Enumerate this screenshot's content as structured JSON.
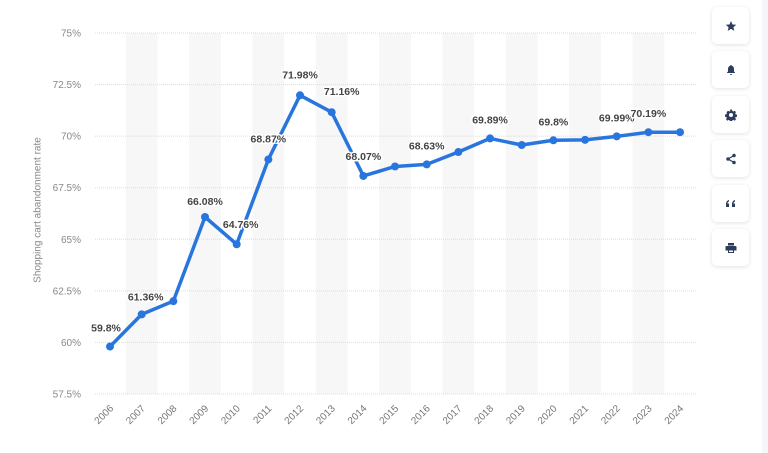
{
  "chart_data": {
    "type": "line",
    "title": "",
    "xlabel": "",
    "ylabel": "Shopping cart abandonment rate",
    "ylim": [
      57.5,
      75
    ],
    "yticks": [
      "57.5%",
      "60%",
      "62.5%",
      "65%",
      "67.5%",
      "70%",
      "72.5%",
      "75%"
    ],
    "ytick_values": [
      57.5,
      60,
      62.5,
      65,
      67.5,
      70,
      72.5,
      75
    ],
    "grid": true,
    "legend": null,
    "categories": [
      "2006",
      "2007",
      "2008",
      "2009",
      "2010",
      "2011",
      "2012",
      "2013",
      "2014",
      "2015",
      "2016",
      "2017",
      "2018",
      "2019",
      "2020",
      "2021",
      "2022",
      "2023",
      "2024"
    ],
    "series": [
      {
        "name": "Shopping cart abandonment rate",
        "color": "#2876dd",
        "values": [
          59.8,
          61.36,
          62.0,
          66.08,
          64.76,
          68.87,
          71.98,
          71.16,
          68.07,
          68.53,
          68.63,
          69.23,
          69.89,
          69.57,
          69.8,
          69.82,
          69.99,
          70.19,
          70.19
        ],
        "labels": [
          "59.8%",
          "61.36%",
          "",
          "66.08%",
          "64.76%",
          "68.87%",
          "71.98%",
          "71.16%",
          "68.07%",
          "",
          "68.63%",
          "",
          "69.89%",
          "",
          "69.8%",
          "",
          "69.99%",
          "70.19%",
          ""
        ]
      }
    ]
  },
  "toolbar": {
    "buttons": [
      {
        "name": "favorite",
        "icon": "star-icon"
      },
      {
        "name": "notification",
        "icon": "bell-icon"
      },
      {
        "name": "settings",
        "icon": "gear-icon"
      },
      {
        "name": "share",
        "icon": "share-icon"
      },
      {
        "name": "cite",
        "icon": "quote-icon"
      },
      {
        "name": "print",
        "icon": "print-icon"
      }
    ]
  }
}
